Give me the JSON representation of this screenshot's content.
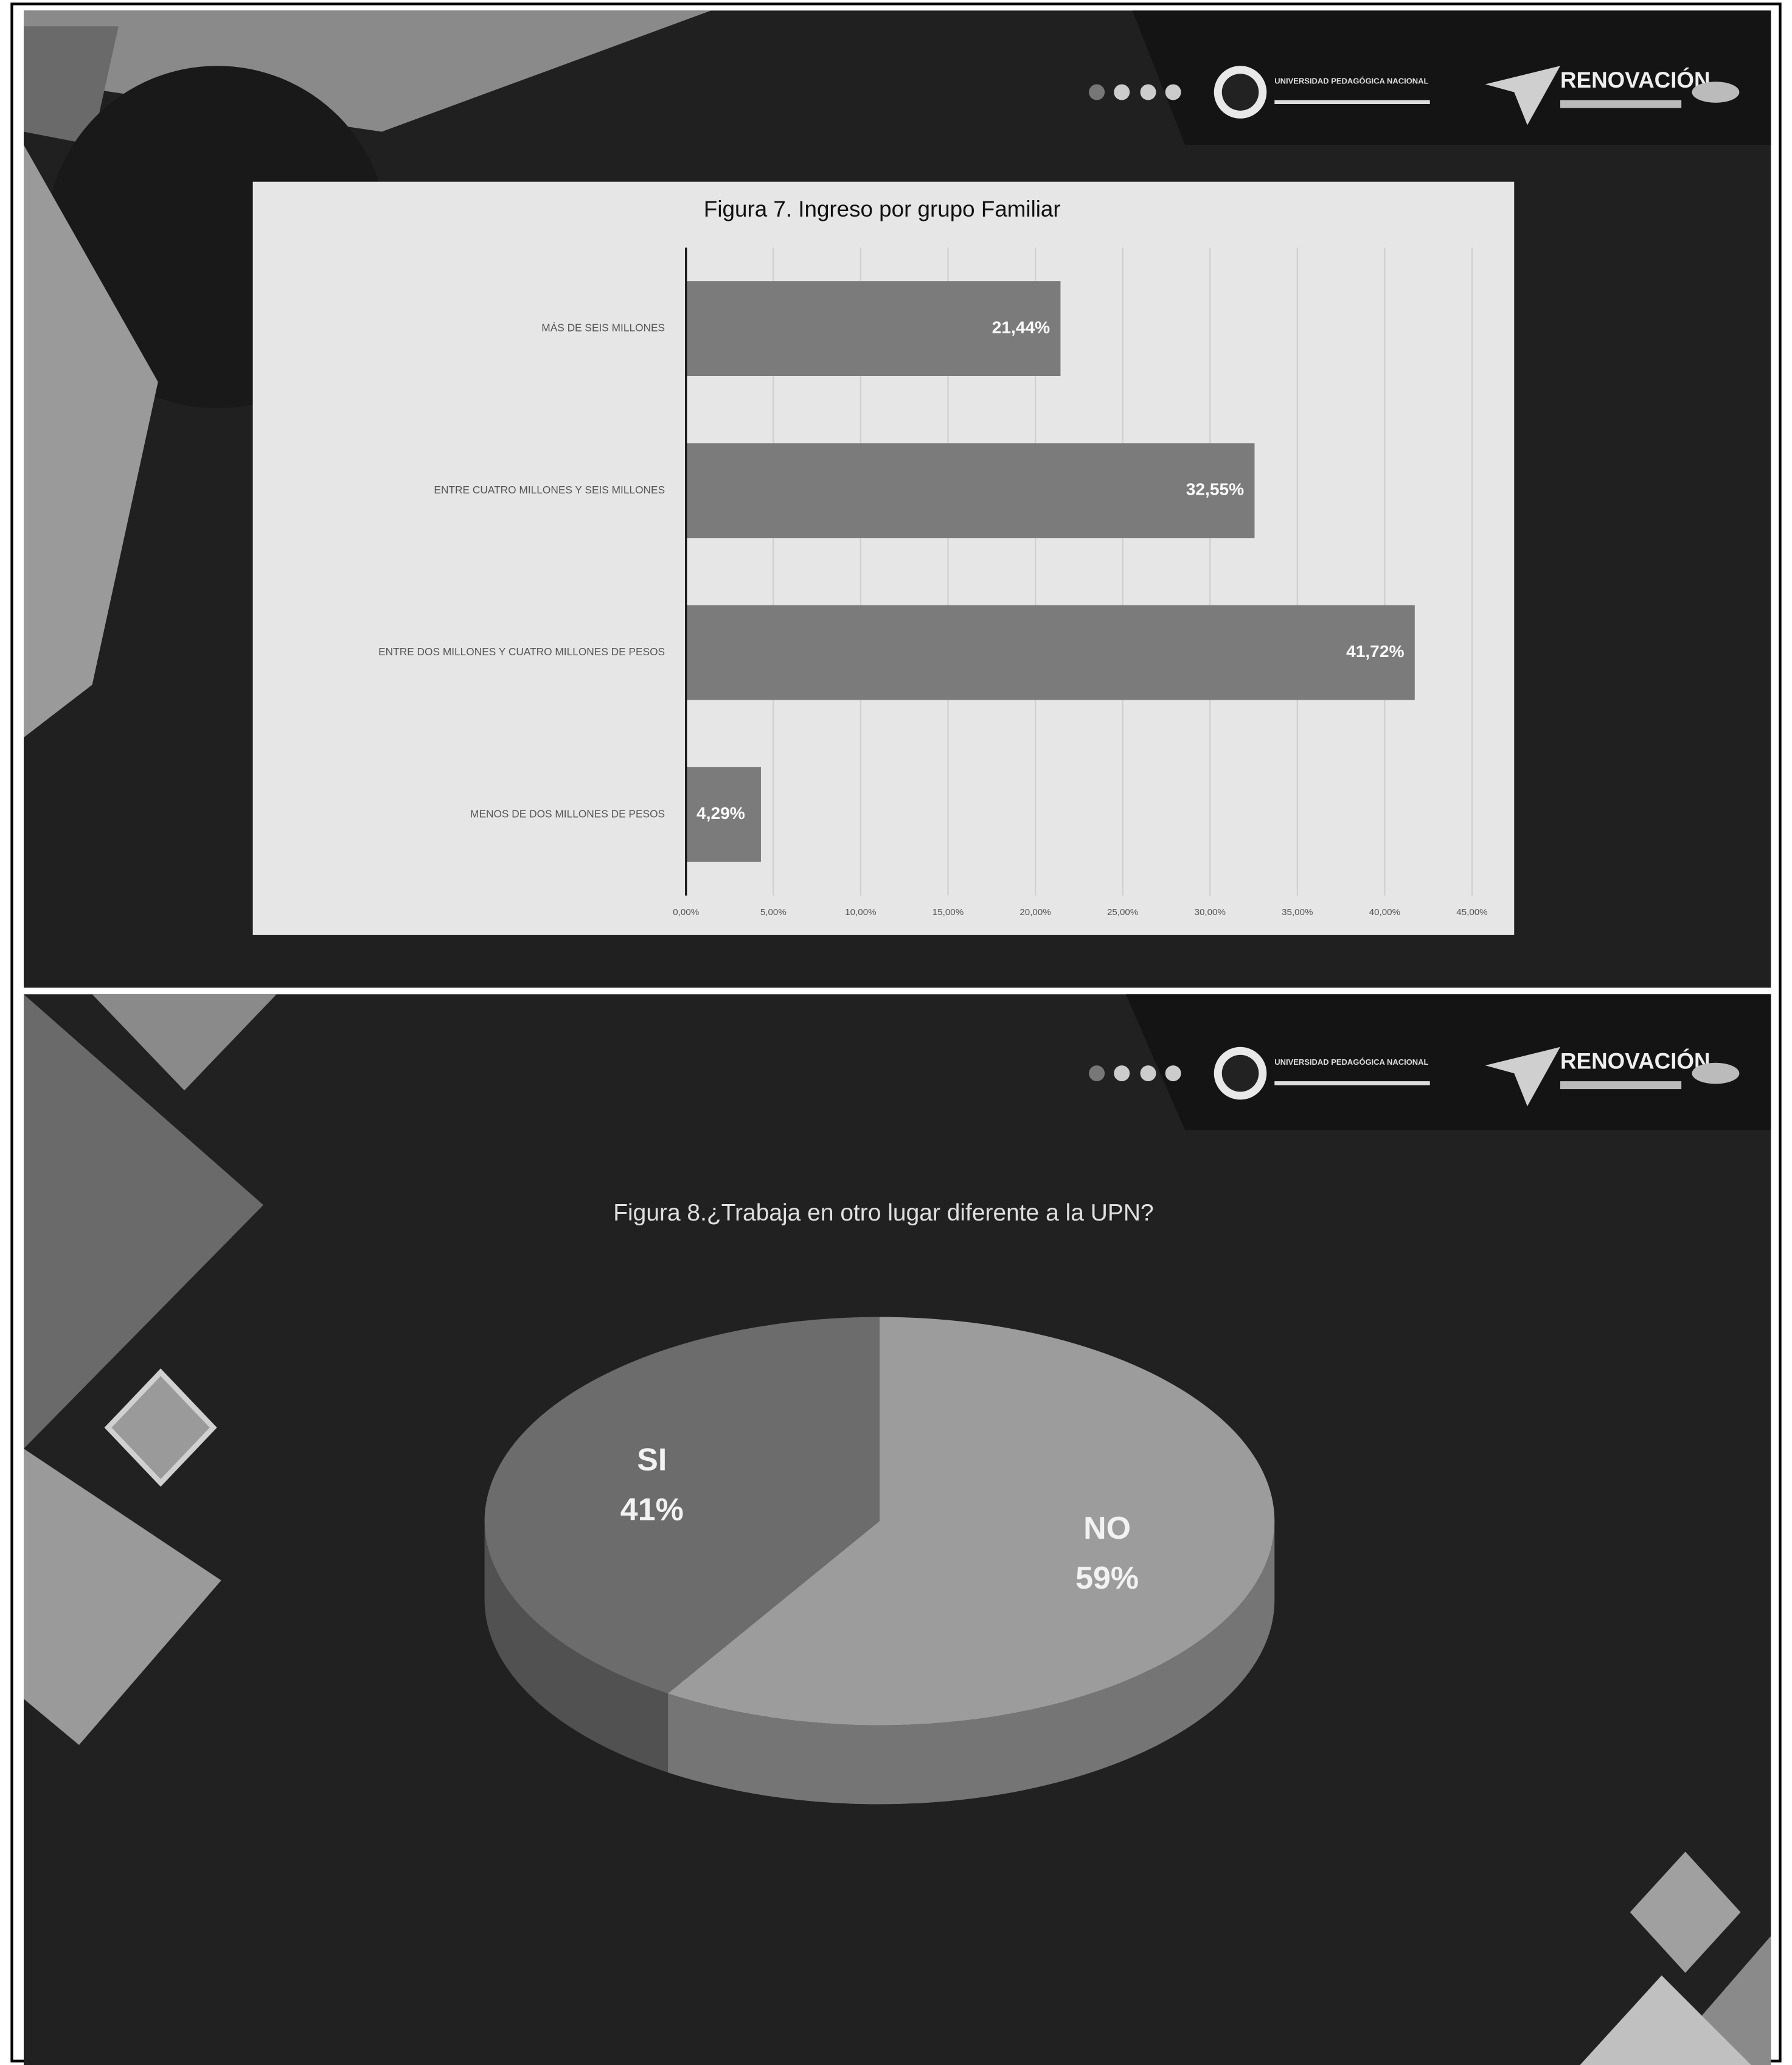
{
  "logos": {
    "university": "UNIVERSIDAD PEDAGÓGICA NACIONAL",
    "campaign": "RENOVACIÓN"
  },
  "chart_data": [
    {
      "type": "hbar",
      "title": "Figura 7. Ingreso por grupo Familiar",
      "categories": [
        "MÁS DE SEIS MILLONES",
        "ENTRE CUATRO MILLONES Y SEIS MILLONES",
        "ENTRE DOS MILLONES Y CUATRO MILLONES DE PESOS",
        "MENOS DE DOS MILLONES DE PESOS"
      ],
      "values": [
        21.44,
        32.55,
        41.72,
        4.29
      ],
      "value_labels": [
        "21,44%",
        "32,55%",
        "41,72%",
        "4,29%"
      ],
      "color": "#7b7b7b",
      "xlim": [
        0,
        45
      ],
      "xticks": [
        {
          "value": 0,
          "label": "0,00%"
        },
        {
          "value": 5,
          "label": "5,00%"
        },
        {
          "value": 10,
          "label": "10,00%"
        },
        {
          "value": 15,
          "label": "15,00%"
        },
        {
          "value": 20,
          "label": "20,00%"
        },
        {
          "value": 25,
          "label": "25,00%"
        },
        {
          "value": 30,
          "label": "30,00%"
        },
        {
          "value": 35,
          "label": "35,00%"
        },
        {
          "value": 40,
          "label": "40,00%"
        },
        {
          "value": 45,
          "label": "45,00%"
        }
      ],
      "grid": true
    },
    {
      "type": "pie",
      "title": "Figura 8.¿Trabaja en otro lugar diferente a la UPN?",
      "categories": [
        "SI",
        "NO"
      ],
      "values": [
        41,
        59
      ],
      "value_labels": [
        "41%",
        "59%"
      ],
      "colors": [
        "#6c6c6c",
        "#9c9c9c"
      ]
    }
  ]
}
